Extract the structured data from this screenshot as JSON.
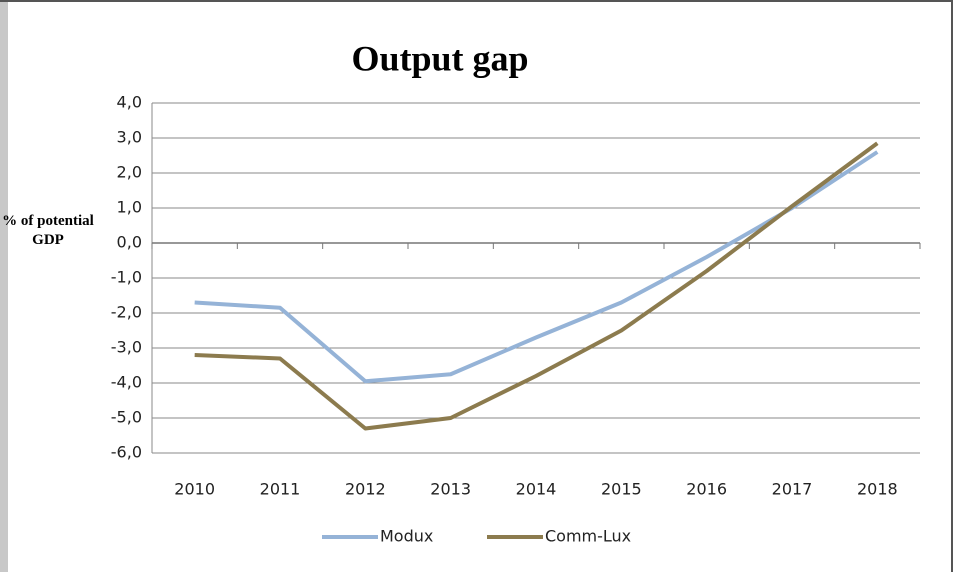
{
  "chart_data": {
    "type": "line",
    "title": "Output gap",
    "y_label": "% of potential GDP",
    "categories": [
      "2010",
      "2011",
      "2012",
      "2013",
      "2014",
      "2015",
      "2016",
      "2017",
      "2018"
    ],
    "series": [
      {
        "name": "Modux",
        "color": "#95b3d7",
        "values": [
          -1.7,
          -1.85,
          -3.95,
          -3.75,
          -2.7,
          -1.7,
          -0.4,
          1.0,
          2.6
        ]
      },
      {
        "name": "Comm-Lux",
        "color": "#8c7b4e",
        "values": [
          -3.2,
          -3.3,
          -5.3,
          -5.0,
          -3.8,
          -2.5,
          -0.8,
          1.05,
          2.85
        ]
      }
    ],
    "ylim": [
      -6,
      4
    ],
    "yticks": [
      {
        "value": -6,
        "label": "-6,0"
      },
      {
        "value": -5,
        "label": "-5,0"
      },
      {
        "value": -4,
        "label": "-4,0"
      },
      {
        "value": -3,
        "label": "-3,0"
      },
      {
        "value": -2,
        "label": "-2,0"
      },
      {
        "value": -1,
        "label": "-1,0"
      },
      {
        "value": 0,
        "label": "0,0"
      },
      {
        "value": 1,
        "label": "1,0"
      },
      {
        "value": 2,
        "label": "2,0"
      },
      {
        "value": 3,
        "label": "3,0"
      },
      {
        "value": 4,
        "label": "4,0"
      }
    ],
    "grid": true,
    "legend": "bottom"
  }
}
